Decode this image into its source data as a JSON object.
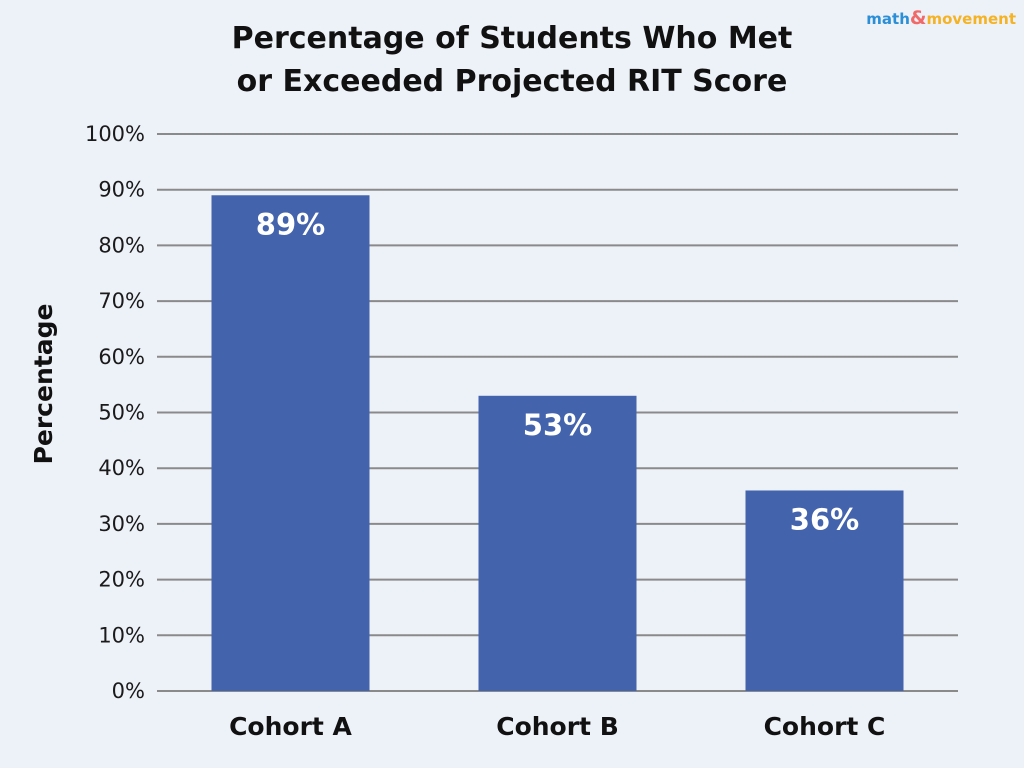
{
  "chart_data": {
    "type": "bar",
    "title_lines": [
      "Percentage of Students Who Met",
      "or Exceeded Projected RIT Score"
    ],
    "xlabel": "",
    "ylabel": "Percentage",
    "categories": [
      "Cohort A",
      "Cohort B",
      "Cohort C"
    ],
    "values": [
      89,
      53,
      36
    ],
    "data_labels": [
      "89%",
      "53%",
      "36%"
    ],
    "ylim": [
      0,
      100
    ],
    "yticks": [
      0,
      10,
      20,
      30,
      40,
      50,
      60,
      70,
      80,
      90,
      100
    ],
    "ytick_labels": [
      "0%",
      "10%",
      "20%",
      "30%",
      "40%",
      "50%",
      "60%",
      "70%",
      "80%",
      "90%",
      "100%"
    ],
    "grid": true,
    "legend": "none",
    "colors": {
      "bar": "#4463ad",
      "grid": "#8a8a8a",
      "background": "#edf1f8"
    }
  },
  "logo": {
    "word1": "math",
    "amp": "&",
    "word2": "movement",
    "colors": {
      "word1": "#2a8fd6",
      "amp": "#f06a6a",
      "word2": "#f5b324"
    }
  }
}
